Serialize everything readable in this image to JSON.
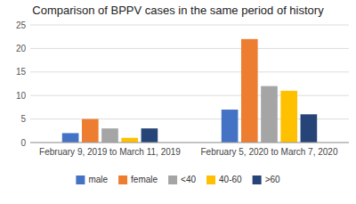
{
  "chart_data": {
    "type": "bar",
    "title": "Comparison of BPPV cases in the same period of history",
    "categories": [
      "February 9, 2019 to March 11, 2019",
      "February 5, 2020 to March 7, 2020"
    ],
    "series": [
      {
        "name": "male",
        "color": "#4472C4",
        "values": [
          2,
          7
        ]
      },
      {
        "name": "female",
        "color": "#ED7D31",
        "values": [
          5,
          22
        ]
      },
      {
        "name": "<40",
        "color": "#A5A5A5",
        "values": [
          3,
          12
        ]
      },
      {
        "name": "40-60",
        "color": "#FFC000",
        "values": [
          1,
          11
        ]
      },
      {
        "name": ">60",
        "color": "#264478",
        "values": [
          3,
          6
        ]
      }
    ],
    "ylim": [
      0,
      25
    ],
    "yticks": [
      0,
      5,
      10,
      15,
      20,
      25
    ],
    "grid": true,
    "legend": "bottom"
  }
}
